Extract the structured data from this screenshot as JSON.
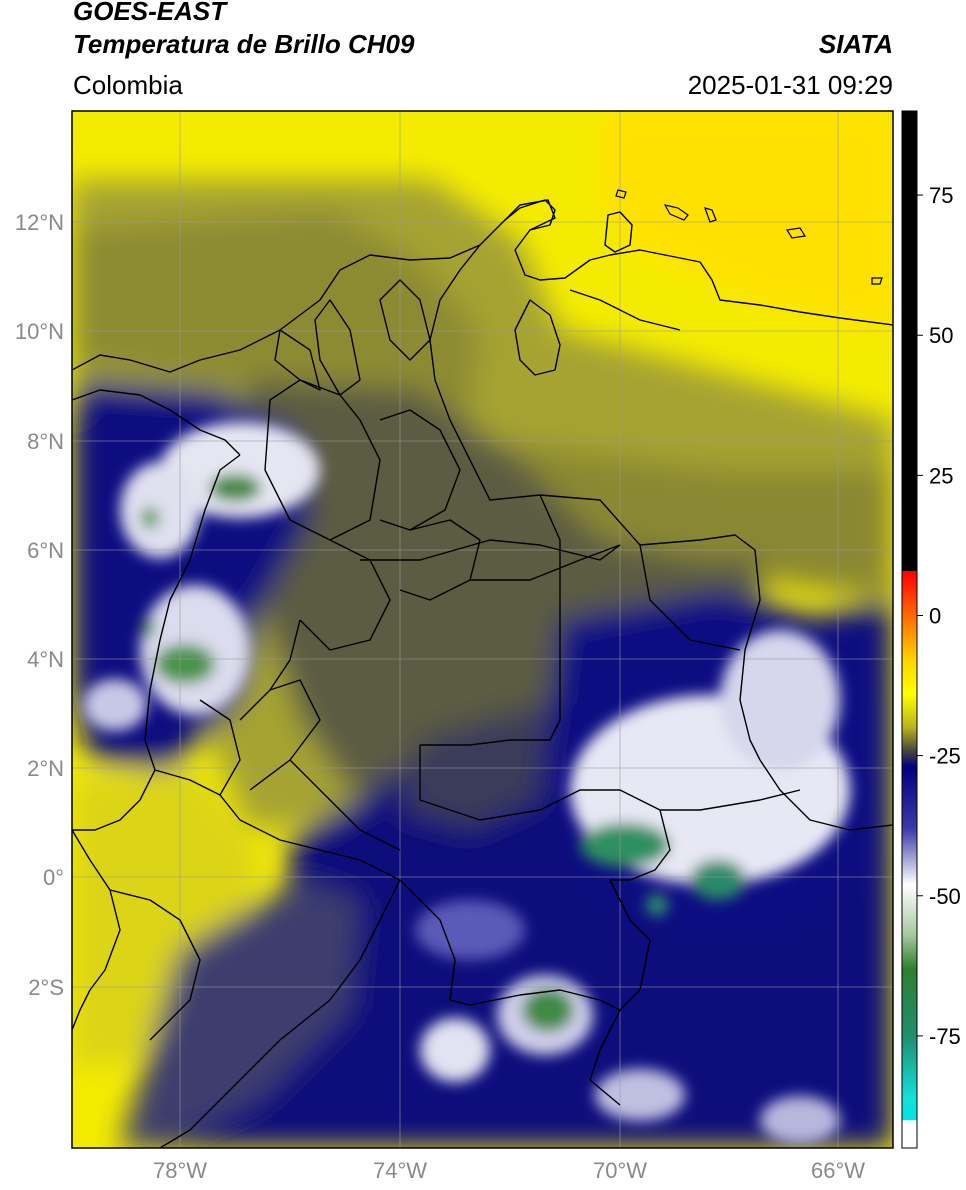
{
  "header": {
    "satellite": "GOES-EAST",
    "product": "Temperatura de Brillo CH09",
    "agency": "SIATA",
    "region": "Colombia",
    "datetime": "2025-01-31 09:29"
  },
  "map": {
    "lat_labels": [
      "12°N",
      "10°N",
      "8°N",
      "6°N",
      "4°N",
      "2°N",
      "0°",
      "2°S"
    ],
    "lon_labels": [
      "78°W",
      "74°W",
      "70°W",
      "66°W"
    ],
    "lat_range": [
      -5,
      14
    ],
    "lon_range": [
      -80,
      -65
    ]
  },
  "colorbar": {
    "ticks": [
      "75",
      "50",
      "25",
      "0",
      "-25",
      "-50",
      "-75"
    ],
    "tick_values": [
      75,
      50,
      25,
      0,
      -25,
      -50,
      -75
    ],
    "range": [
      -95,
      90
    ],
    "stops": [
      {
        "v": 90,
        "c": "#000000"
      },
      {
        "v": 8,
        "c": "#000000"
      },
      {
        "v": 7.9,
        "c": "#ff0000"
      },
      {
        "v": 0,
        "c": "#ff6a00"
      },
      {
        "v": -8,
        "c": "#ffd400"
      },
      {
        "v": -14,
        "c": "#ffff00"
      },
      {
        "v": -20,
        "c": "#b9b21f"
      },
      {
        "v": -24,
        "c": "#4a4a3c"
      },
      {
        "v": -27,
        "c": "#000080"
      },
      {
        "v": -38,
        "c": "#3a3aa8"
      },
      {
        "v": -48,
        "c": "#ffffff"
      },
      {
        "v": -57,
        "c": "#a5c9a0"
      },
      {
        "v": -63,
        "c": "#2f7f2f"
      },
      {
        "v": -75,
        "c": "#1f8f6f"
      },
      {
        "v": -86,
        "c": "#14e0d8"
      },
      {
        "v": -90,
        "c": "#00e5e5"
      },
      {
        "v": -90.1,
        "c": "#ffffff"
      },
      {
        "v": -95,
        "c": "#ffffff"
      }
    ]
  },
  "colors": {
    "ocean_yellow": "#f4ec00",
    "land_olive": "#9c9a2e",
    "dark_olive": "#56573f",
    "cold_navy": "#0a0a7c",
    "cloud_white": "#f2f2f8",
    "core_green": "#2f8a55"
  }
}
